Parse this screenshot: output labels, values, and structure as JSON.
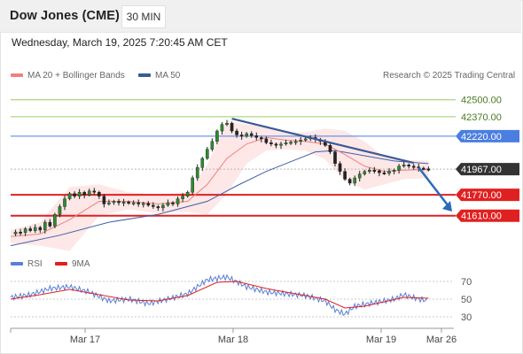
{
  "header": {
    "title": "Dow Jones (CME)",
    "timeframe": "30 MIN"
  },
  "datetime": "Wednesday, March 19, 2025 7:20:45 AM CET",
  "legend": {
    "ma20": "MA 20 + Bollinger Bands",
    "ma50": "MA 50",
    "copyright": "Research © 2025 Trading Central"
  },
  "rsi_legend": {
    "rsi": "RSI",
    "ma": "9MA"
  },
  "colors": {
    "ma20": "#f08080",
    "ma50": "#4060a8",
    "bollinger_fill": "#fde4e4",
    "candle": "#2e8b2e",
    "support": "#e02020",
    "resistance_green": "#9acd60",
    "resistance_blue": "#4a7ee0",
    "current_price": "#333333",
    "trendline": "#3a5a98",
    "arrow": "#2a6ab8",
    "rsi": "#5a7fd8",
    "rsi_ma": "#e02020"
  },
  "chart_data": {
    "type": "candlestick",
    "instrument": "Dow Jones (CME)",
    "interval": "30 MIN",
    "x_ticks": [
      "Mar 17",
      "Mar 18",
      "Mar 19",
      "Mar 26"
    ],
    "y_range": [
      41350,
      42600
    ],
    "levels": [
      {
        "value": 42500.0,
        "label": "42500.00",
        "kind": "resistance"
      },
      {
        "value": 42370.0,
        "label": "42370.00",
        "kind": "resistance"
      },
      {
        "value": 42220.0,
        "label": "42220.00",
        "kind": "pivot"
      },
      {
        "value": 41967.0,
        "label": "41967.00",
        "kind": "last"
      },
      {
        "value": 41770.0,
        "label": "41770.00",
        "kind": "support"
      },
      {
        "value": 41610.0,
        "label": "41610.00",
        "kind": "support"
      }
    ],
    "price_path": [
      [
        0,
        41470
      ],
      [
        1,
        41485
      ],
      [
        2,
        41480
      ],
      [
        3,
        41510
      ],
      [
        4,
        41495
      ],
      [
        5,
        41520
      ],
      [
        6,
        41500
      ],
      [
        7,
        41560
      ],
      [
        8,
        41530
      ],
      [
        9,
        41620
      ],
      [
        10,
        41680
      ],
      [
        11,
        41740
      ],
      [
        12,
        41780
      ],
      [
        13,
        41760
      ],
      [
        14,
        41790
      ],
      [
        15,
        41770
      ],
      [
        16,
        41800
      ],
      [
        17,
        41790
      ],
      [
        18,
        41760
      ],
      [
        19,
        41700
      ],
      [
        20,
        41710
      ],
      [
        21,
        41720
      ],
      [
        22,
        41710
      ],
      [
        23,
        41715
      ],
      [
        24,
        41705
      ],
      [
        25,
        41710
      ],
      [
        26,
        41700
      ],
      [
        27,
        41705
      ],
      [
        28,
        41690
      ],
      [
        29,
        41680
      ],
      [
        30,
        41670
      ],
      [
        31,
        41690
      ],
      [
        32,
        41710
      ],
      [
        33,
        41700
      ],
      [
        34,
        41740
      ],
      [
        35,
        41760
      ],
      [
        36,
        41790
      ],
      [
        37,
        41900
      ],
      [
        38,
        41980
      ],
      [
        39,
        42050
      ],
      [
        40,
        42120
      ],
      [
        41,
        42180
      ],
      [
        42,
        42260
      ],
      [
        43,
        42310
      ],
      [
        44,
        42320
      ],
      [
        45,
        42260
      ],
      [
        46,
        42230
      ],
      [
        47,
        42220
      ],
      [
        48,
        42240
      ],
      [
        49,
        42225
      ],
      [
        50,
        42210
      ],
      [
        51,
        42200
      ],
      [
        52,
        42170
      ],
      [
        53,
        42160
      ],
      [
        54,
        42150
      ],
      [
        55,
        42160
      ],
      [
        56,
        42170
      ],
      [
        57,
        42175
      ],
      [
        58,
        42180
      ],
      [
        59,
        42190
      ],
      [
        60,
        42200
      ],
      [
        61,
        42210
      ],
      [
        62,
        42195
      ],
      [
        63,
        42180
      ],
      [
        64,
        42150
      ],
      [
        65,
        42100
      ],
      [
        66,
        42010
      ],
      [
        67,
        41950
      ],
      [
        68,
        41890
      ],
      [
        69,
        41860
      ],
      [
        70,
        41900
      ],
      [
        71,
        41930
      ],
      [
        72,
        41950
      ],
      [
        73,
        41960
      ],
      [
        74,
        41955
      ],
      [
        75,
        41940
      ],
      [
        76,
        41935
      ],
      [
        77,
        41950
      ],
      [
        78,
        41960
      ],
      [
        79,
        41990
      ],
      [
        80,
        42000
      ],
      [
        81,
        41990
      ],
      [
        82,
        41985
      ],
      [
        83,
        41975
      ],
      [
        84,
        41970
      ],
      [
        85,
        41967
      ]
    ],
    "ma20_path": [
      [
        0,
        41450
      ],
      [
        6,
        41470
      ],
      [
        12,
        41580
      ],
      [
        18,
        41720
      ],
      [
        24,
        41720
      ],
      [
        30,
        41700
      ],
      [
        36,
        41720
      ],
      [
        40,
        41850
      ],
      [
        44,
        42050
      ],
      [
        48,
        42160
      ],
      [
        52,
        42210
      ],
      [
        56,
        42190
      ],
      [
        60,
        42180
      ],
      [
        64,
        42160
      ],
      [
        68,
        42080
      ],
      [
        72,
        41990
      ],
      [
        76,
        41950
      ],
      [
        80,
        41960
      ],
      [
        85,
        41965
      ]
    ],
    "ma50_path": [
      [
        0,
        41380
      ],
      [
        10,
        41460
      ],
      [
        20,
        41560
      ],
      [
        30,
        41620
      ],
      [
        40,
        41720
      ],
      [
        46,
        41840
      ],
      [
        52,
        41950
      ],
      [
        58,
        42040
      ],
      [
        62,
        42100
      ],
      [
        66,
        42110
      ],
      [
        72,
        42070
      ],
      [
        78,
        42030
      ],
      [
        85,
        42010
      ]
    ],
    "bb_upper_path": [
      [
        0,
        41500
      ],
      [
        6,
        41560
      ],
      [
        12,
        41830
      ],
      [
        18,
        41850
      ],
      [
        24,
        41790
      ],
      [
        30,
        41770
      ],
      [
        36,
        41790
      ],
      [
        40,
        42000
      ],
      [
        44,
        42340
      ],
      [
        48,
        42310
      ],
      [
        52,
        42300
      ],
      [
        56,
        42250
      ],
      [
        60,
        42250
      ],
      [
        64,
        42280
      ],
      [
        68,
        42260
      ],
      [
        72,
        42180
      ],
      [
        76,
        42060
      ],
      [
        80,
        42040
      ],
      [
        85,
        42030
      ]
    ],
    "bb_lower_path": [
      [
        0,
        41400
      ],
      [
        6,
        41380
      ],
      [
        12,
        41340
      ],
      [
        18,
        41610
      ],
      [
        24,
        41660
      ],
      [
        30,
        41630
      ],
      [
        36,
        41640
      ],
      [
        40,
        41620
      ],
      [
        44,
        41780
      ],
      [
        48,
        42010
      ],
      [
        52,
        42110
      ],
      [
        56,
        42120
      ],
      [
        60,
        42110
      ],
      [
        64,
        42040
      ],
      [
        68,
        41880
      ],
      [
        72,
        41810
      ],
      [
        76,
        41850
      ],
      [
        80,
        41890
      ],
      [
        85,
        41900
      ]
    ],
    "trendline": {
      "from": [
        45,
        42355
      ],
      "to": [
        82,
        42015
      ]
    },
    "forecast_arrow": {
      "from": [
        83,
        41980
      ],
      "to": [
        88,
        41615
      ]
    },
    "rsi": {
      "ticks": [
        30,
        50,
        70
      ],
      "range": [
        20,
        80
      ],
      "rsi_path": [
        [
          0,
          52
        ],
        [
          4,
          55
        ],
        [
          8,
          62
        ],
        [
          12,
          64
        ],
        [
          16,
          58
        ],
        [
          20,
          48
        ],
        [
          24,
          50
        ],
        [
          28,
          45
        ],
        [
          32,
          50
        ],
        [
          36,
          56
        ],
        [
          40,
          72
        ],
        [
          44,
          75
        ],
        [
          48,
          64
        ],
        [
          52,
          58
        ],
        [
          56,
          56
        ],
        [
          60,
          54
        ],
        [
          64,
          48
        ],
        [
          66,
          38
        ],
        [
          68,
          33
        ],
        [
          70,
          42
        ],
        [
          74,
          46
        ],
        [
          78,
          50
        ],
        [
          80,
          55
        ],
        [
          83,
          50
        ],
        [
          85,
          48
        ]
      ],
      "ma_path": [
        [
          0,
          50
        ],
        [
          6,
          55
        ],
        [
          12,
          61
        ],
        [
          18,
          55
        ],
        [
          24,
          49
        ],
        [
          30,
          48
        ],
        [
          36,
          54
        ],
        [
          42,
          69
        ],
        [
          46,
          70
        ],
        [
          52,
          62
        ],
        [
          58,
          56
        ],
        [
          64,
          50
        ],
        [
          68,
          40
        ],
        [
          72,
          42
        ],
        [
          76,
          47
        ],
        [
          80,
          52
        ],
        [
          85,
          51
        ]
      ]
    }
  }
}
